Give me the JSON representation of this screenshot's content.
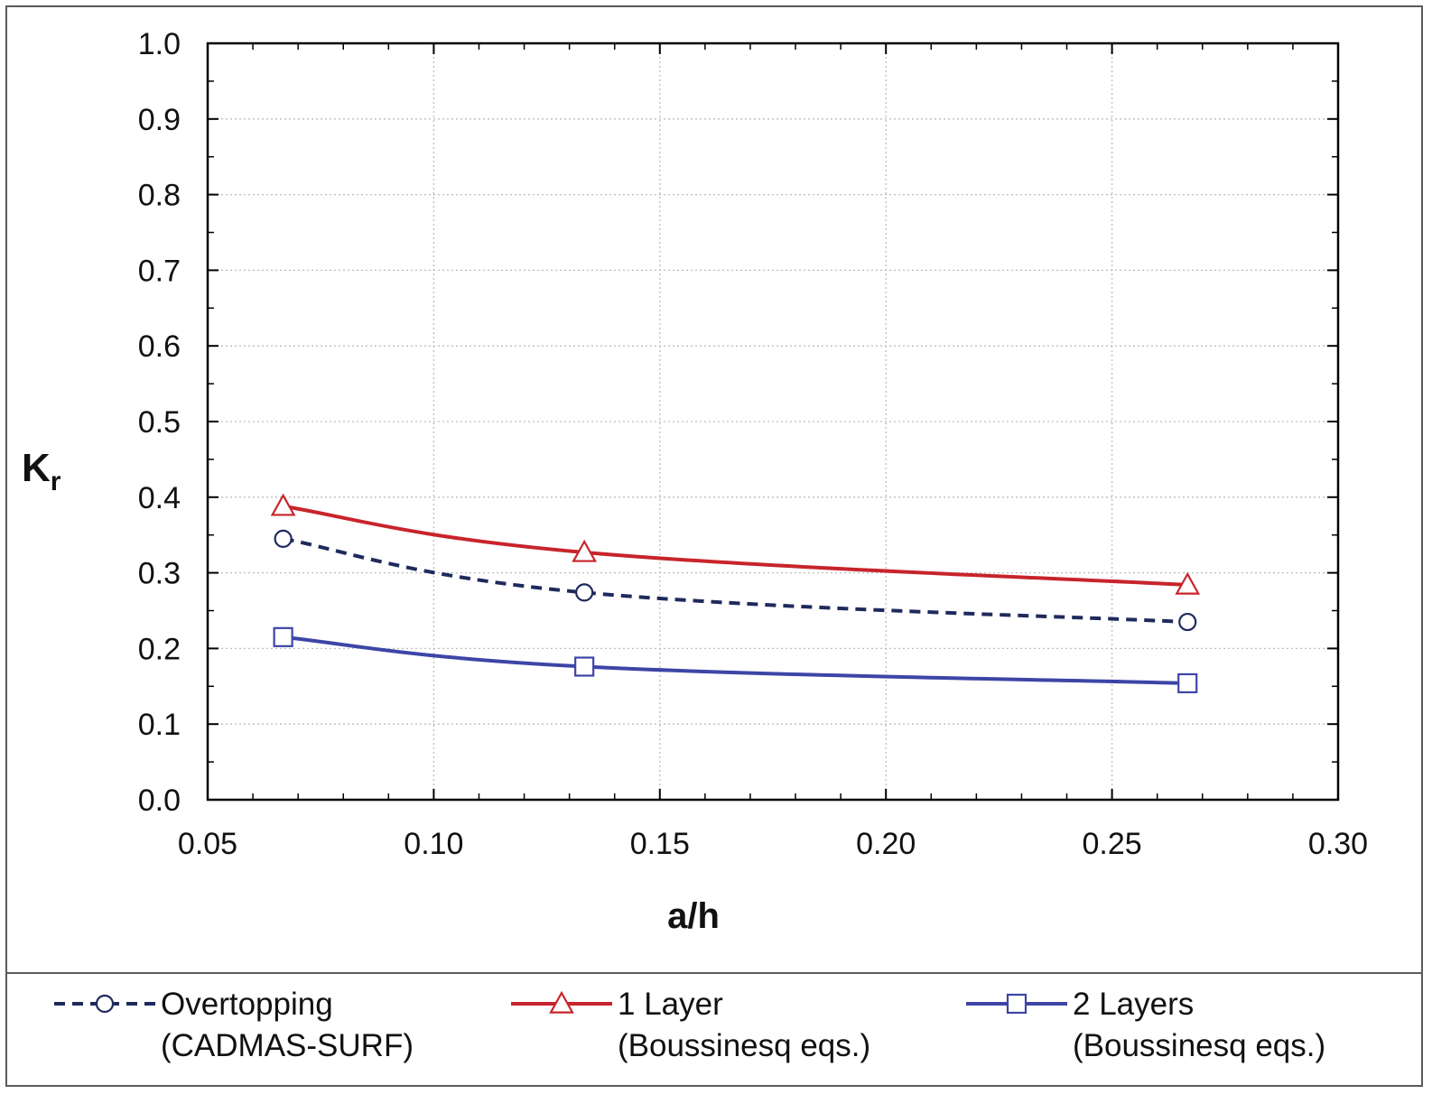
{
  "chart_data": {
    "type": "line",
    "xlabel": "a/h",
    "ylabel": "K",
    "ylabel_subscript": "r",
    "xlim": [
      0.05,
      0.3
    ],
    "ylim": [
      0.0,
      1.0
    ],
    "x_ticks": [
      "0.05",
      "0.10",
      "0.15",
      "0.20",
      "0.25",
      "0.30"
    ],
    "y_ticks": [
      "0.0",
      "0.1",
      "0.2",
      "0.3",
      "0.4",
      "0.5",
      "0.6",
      "0.7",
      "0.8",
      "0.9",
      "1.0"
    ],
    "grid": true,
    "legend_position": "bottom",
    "series": [
      {
        "name": "Overtopping",
        "name_line2": "(CADMAS-SURF)",
        "color": "#1f2a5c",
        "line_style": "dashed",
        "marker": "circle",
        "x": [
          0.0667,
          0.1333,
          0.2667
        ],
        "y": [
          0.345,
          0.274,
          0.235
        ]
      },
      {
        "name": "1 Layer",
        "name_line2": "(Boussinesq eqs.)",
        "color": "#c8242b",
        "line_style": "solid",
        "marker": "triangle",
        "x": [
          0.0667,
          0.1333,
          0.2667
        ],
        "y": [
          0.388,
          0.327,
          0.284
        ]
      },
      {
        "name": "2 Layers",
        "name_line2": "(Boussinesq eqs.)",
        "color": "#3d45a6",
        "line_style": "solid",
        "marker": "square",
        "x": [
          0.0667,
          0.1333,
          0.2667
        ],
        "y": [
          0.215,
          0.176,
          0.154
        ]
      }
    ]
  }
}
